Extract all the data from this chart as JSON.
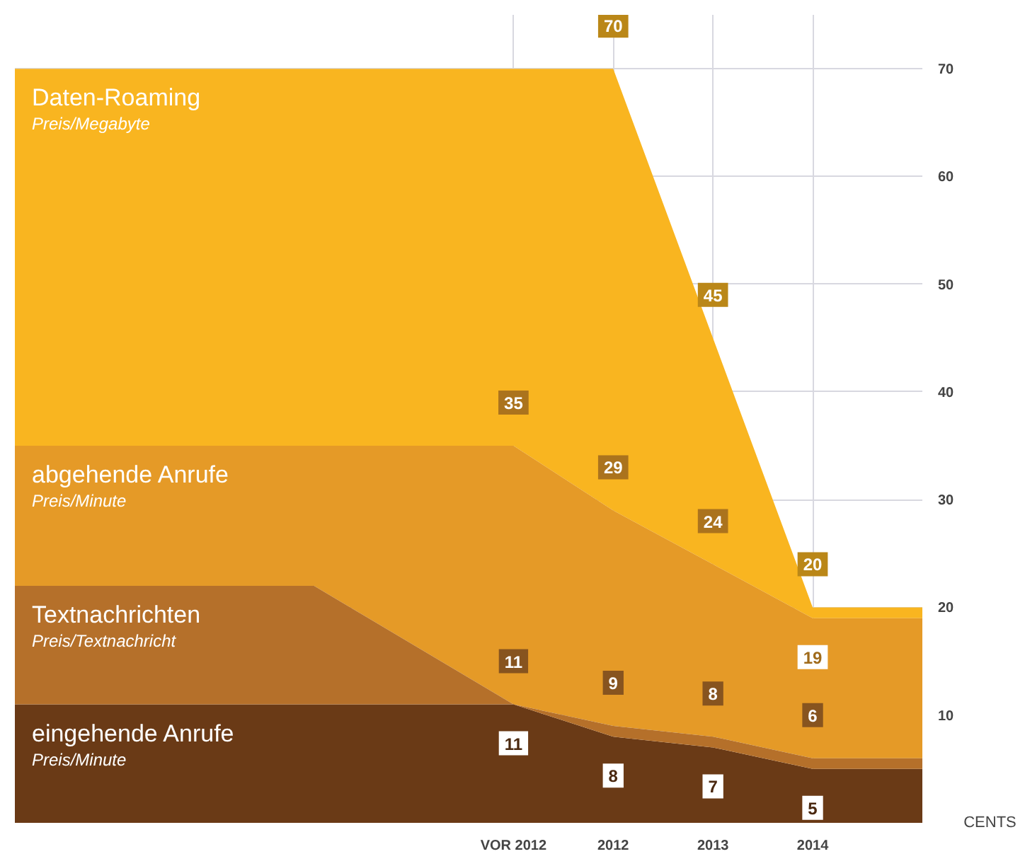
{
  "chart_data": {
    "type": "area",
    "x": [
      2006,
      2009,
      2011,
      2012,
      2013,
      2014,
      2015.1
    ],
    "series": [
      {
        "name": "Daten-Roaming",
        "color": "#f9b520",
        "values": [
          70,
          70,
          70,
          70,
          45,
          20,
          20
        ],
        "value_labels": [
          null,
          null,
          null,
          "70",
          "45",
          "20",
          null
        ]
      },
      {
        "name": "abgehende Anrufe",
        "color": "#e59a27",
        "values": [
          35,
          35,
          35,
          29,
          24,
          19,
          19
        ],
        "value_labels": [
          null,
          null,
          "35",
          "29",
          "24",
          "19",
          null
        ]
      },
      {
        "name": "Textnachrichten",
        "color": "#b5702a",
        "values": [
          22,
          22,
          11,
          9,
          8,
          6,
          6
        ],
        "value_labels": [
          null,
          null,
          "11",
          "9",
          "8",
          "6",
          null
        ]
      },
      {
        "name": "eingehende Anrufe",
        "color": "#6a3a16",
        "values": [
          11,
          11,
          11,
          8,
          7,
          5,
          5
        ],
        "value_labels": [
          null,
          null,
          "11",
          "8",
          "7",
          "5",
          null
        ]
      }
    ],
    "annotations": [
      "Preis/Megabyte",
      "Preis/Minute",
      "Preis/Textnachricht",
      "Preis/Minute"
    ],
    "ylabel": "CENTS",
    "xlim": [
      2006,
      2015.1
    ],
    "ylim": [
      0,
      75
    ],
    "xticks": [
      {
        "value": 2011,
        "label": "VOR 2012"
      },
      2012,
      2013,
      2014
    ],
    "yticks": [
      10,
      20,
      30,
      40,
      50,
      60,
      70
    ],
    "grid": true
  }
}
